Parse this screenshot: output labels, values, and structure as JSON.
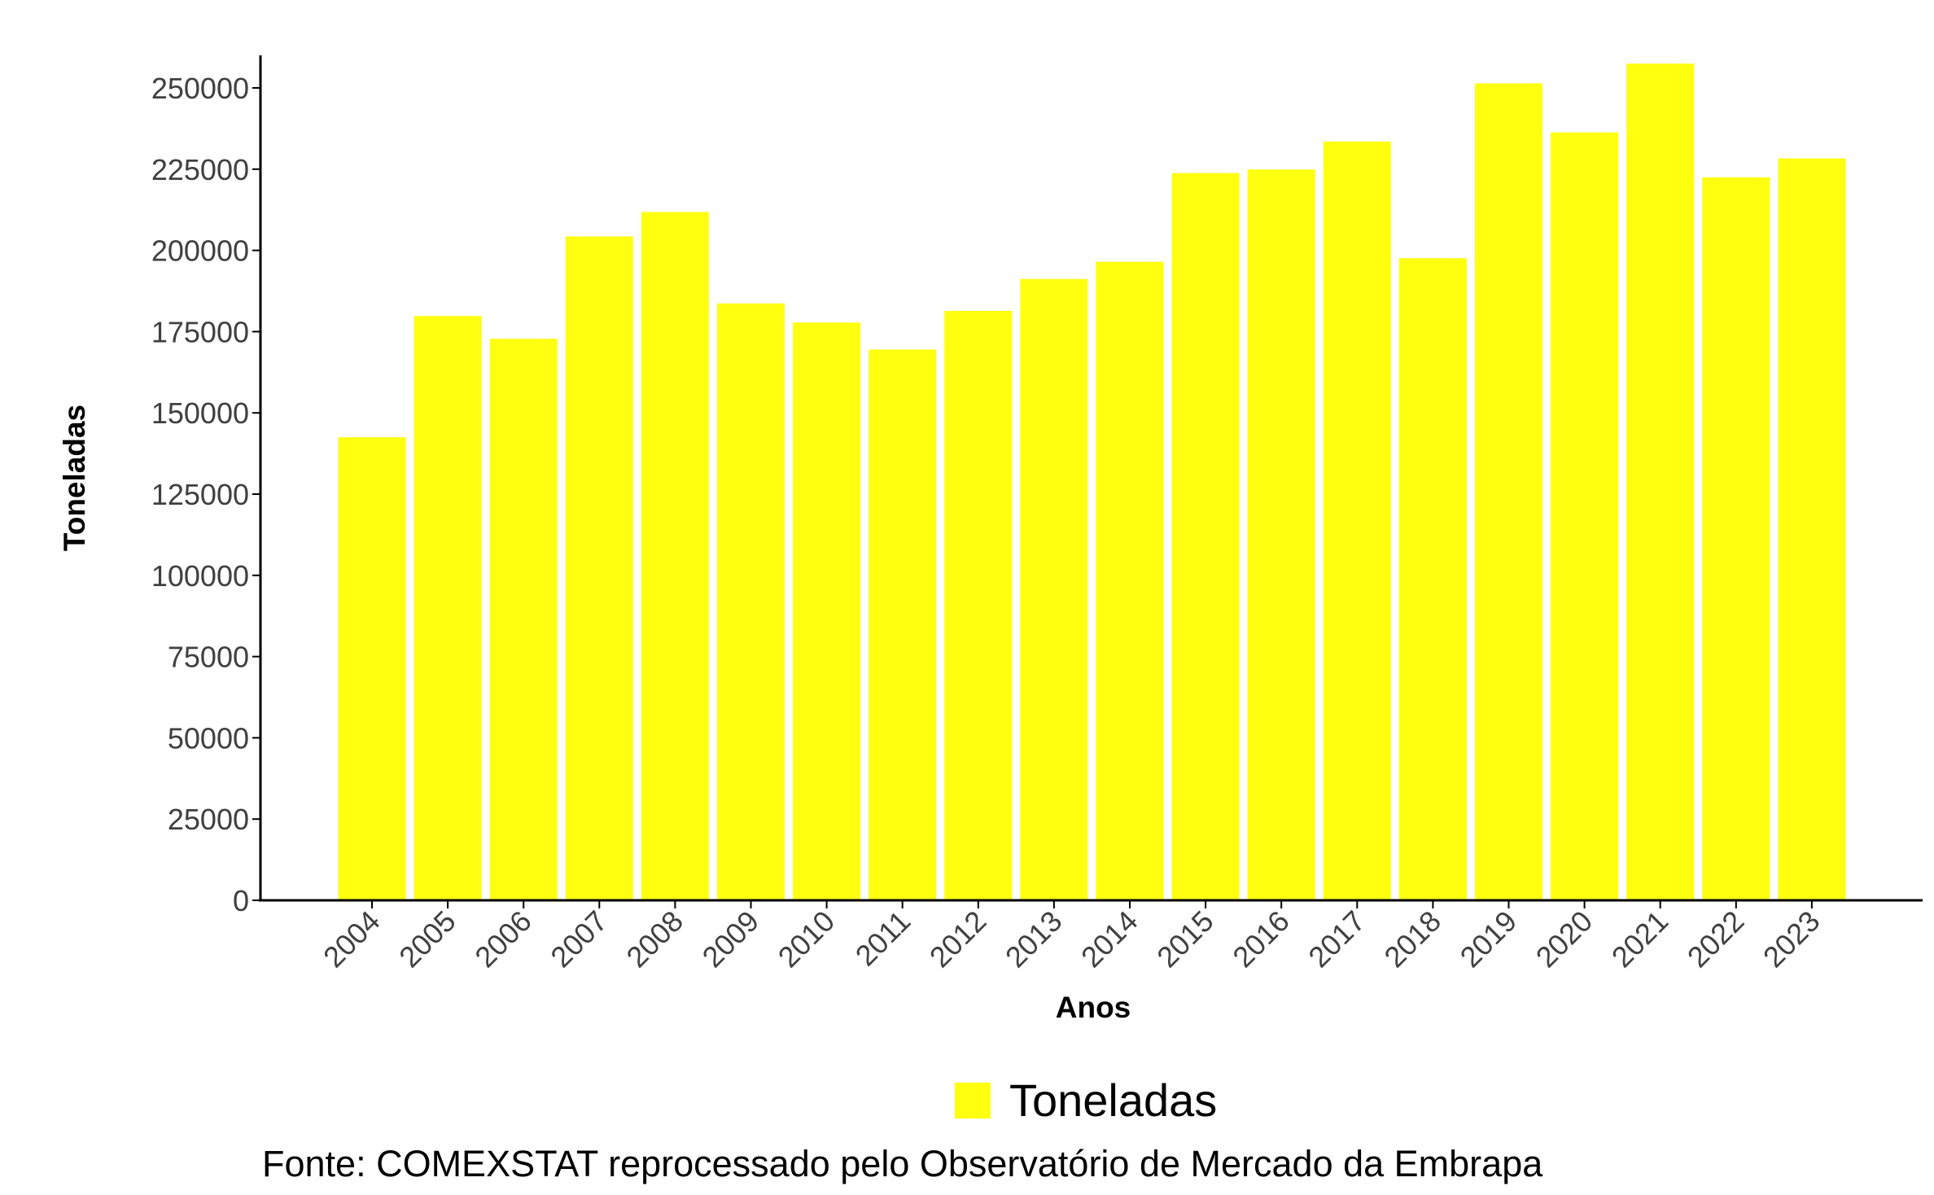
{
  "chart_data": {
    "type": "bar",
    "categories": [
      "2004",
      "2005",
      "2006",
      "2007",
      "2008",
      "2009",
      "2010",
      "2011",
      "2012",
      "2013",
      "2014",
      "2015",
      "2016",
      "2017",
      "2018",
      "2019",
      "2020",
      "2021",
      "2022",
      "2023"
    ],
    "series": [
      {
        "name": "Toneladas",
        "values": [
          142500,
          179800,
          172800,
          204300,
          211800,
          183700,
          177800,
          169500,
          181400,
          191200,
          196500,
          223800,
          224900,
          233500,
          197600,
          251400,
          236300,
          257500,
          222500,
          228300
        ]
      }
    ],
    "xlabel": "Anos",
    "ylabel": "Toneladas",
    "ylim": [
      0,
      260000
    ],
    "yticks": [
      0,
      25000,
      50000,
      75000,
      100000,
      125000,
      150000,
      175000,
      200000,
      225000,
      250000
    ],
    "bar_color": "#FFFF10",
    "grid": false,
    "legend": {
      "position": "bottom",
      "label": "Toneladas"
    }
  },
  "caption": "Fonte: COMEXSTAT reprocessado pelo Observatório de Mercado da Embrapa"
}
